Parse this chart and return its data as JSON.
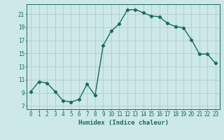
{
  "xlabel": "Humidex (Indice chaleur)",
  "ylabel": "",
  "x": [
    0,
    1,
    2,
    3,
    4,
    5,
    6,
    7,
    8,
    9,
    10,
    11,
    12,
    13,
    14,
    15,
    16,
    17,
    18,
    19,
    20,
    21,
    22,
    23
  ],
  "y": [
    9.2,
    10.7,
    10.5,
    9.2,
    7.8,
    7.6,
    8.0,
    10.3,
    8.6,
    16.2,
    18.4,
    19.5,
    21.6,
    21.7,
    21.2,
    20.7,
    20.6,
    19.6,
    19.1,
    18.9,
    17.1,
    14.9,
    14.9,
    13.5
  ],
  "line_color": "#1a6b5a",
  "marker": "D",
  "markersize": 2.2,
  "bg_color": "#cce8e8",
  "grid_color": "#b0cccc",
  "yticks": [
    7,
    9,
    11,
    13,
    15,
    17,
    19,
    21
  ],
  "ylim": [
    6.5,
    22.5
  ],
  "xlim": [
    -0.5,
    23.5
  ],
  "label_fontsize": 6.5,
  "tick_fontsize": 5.5
}
